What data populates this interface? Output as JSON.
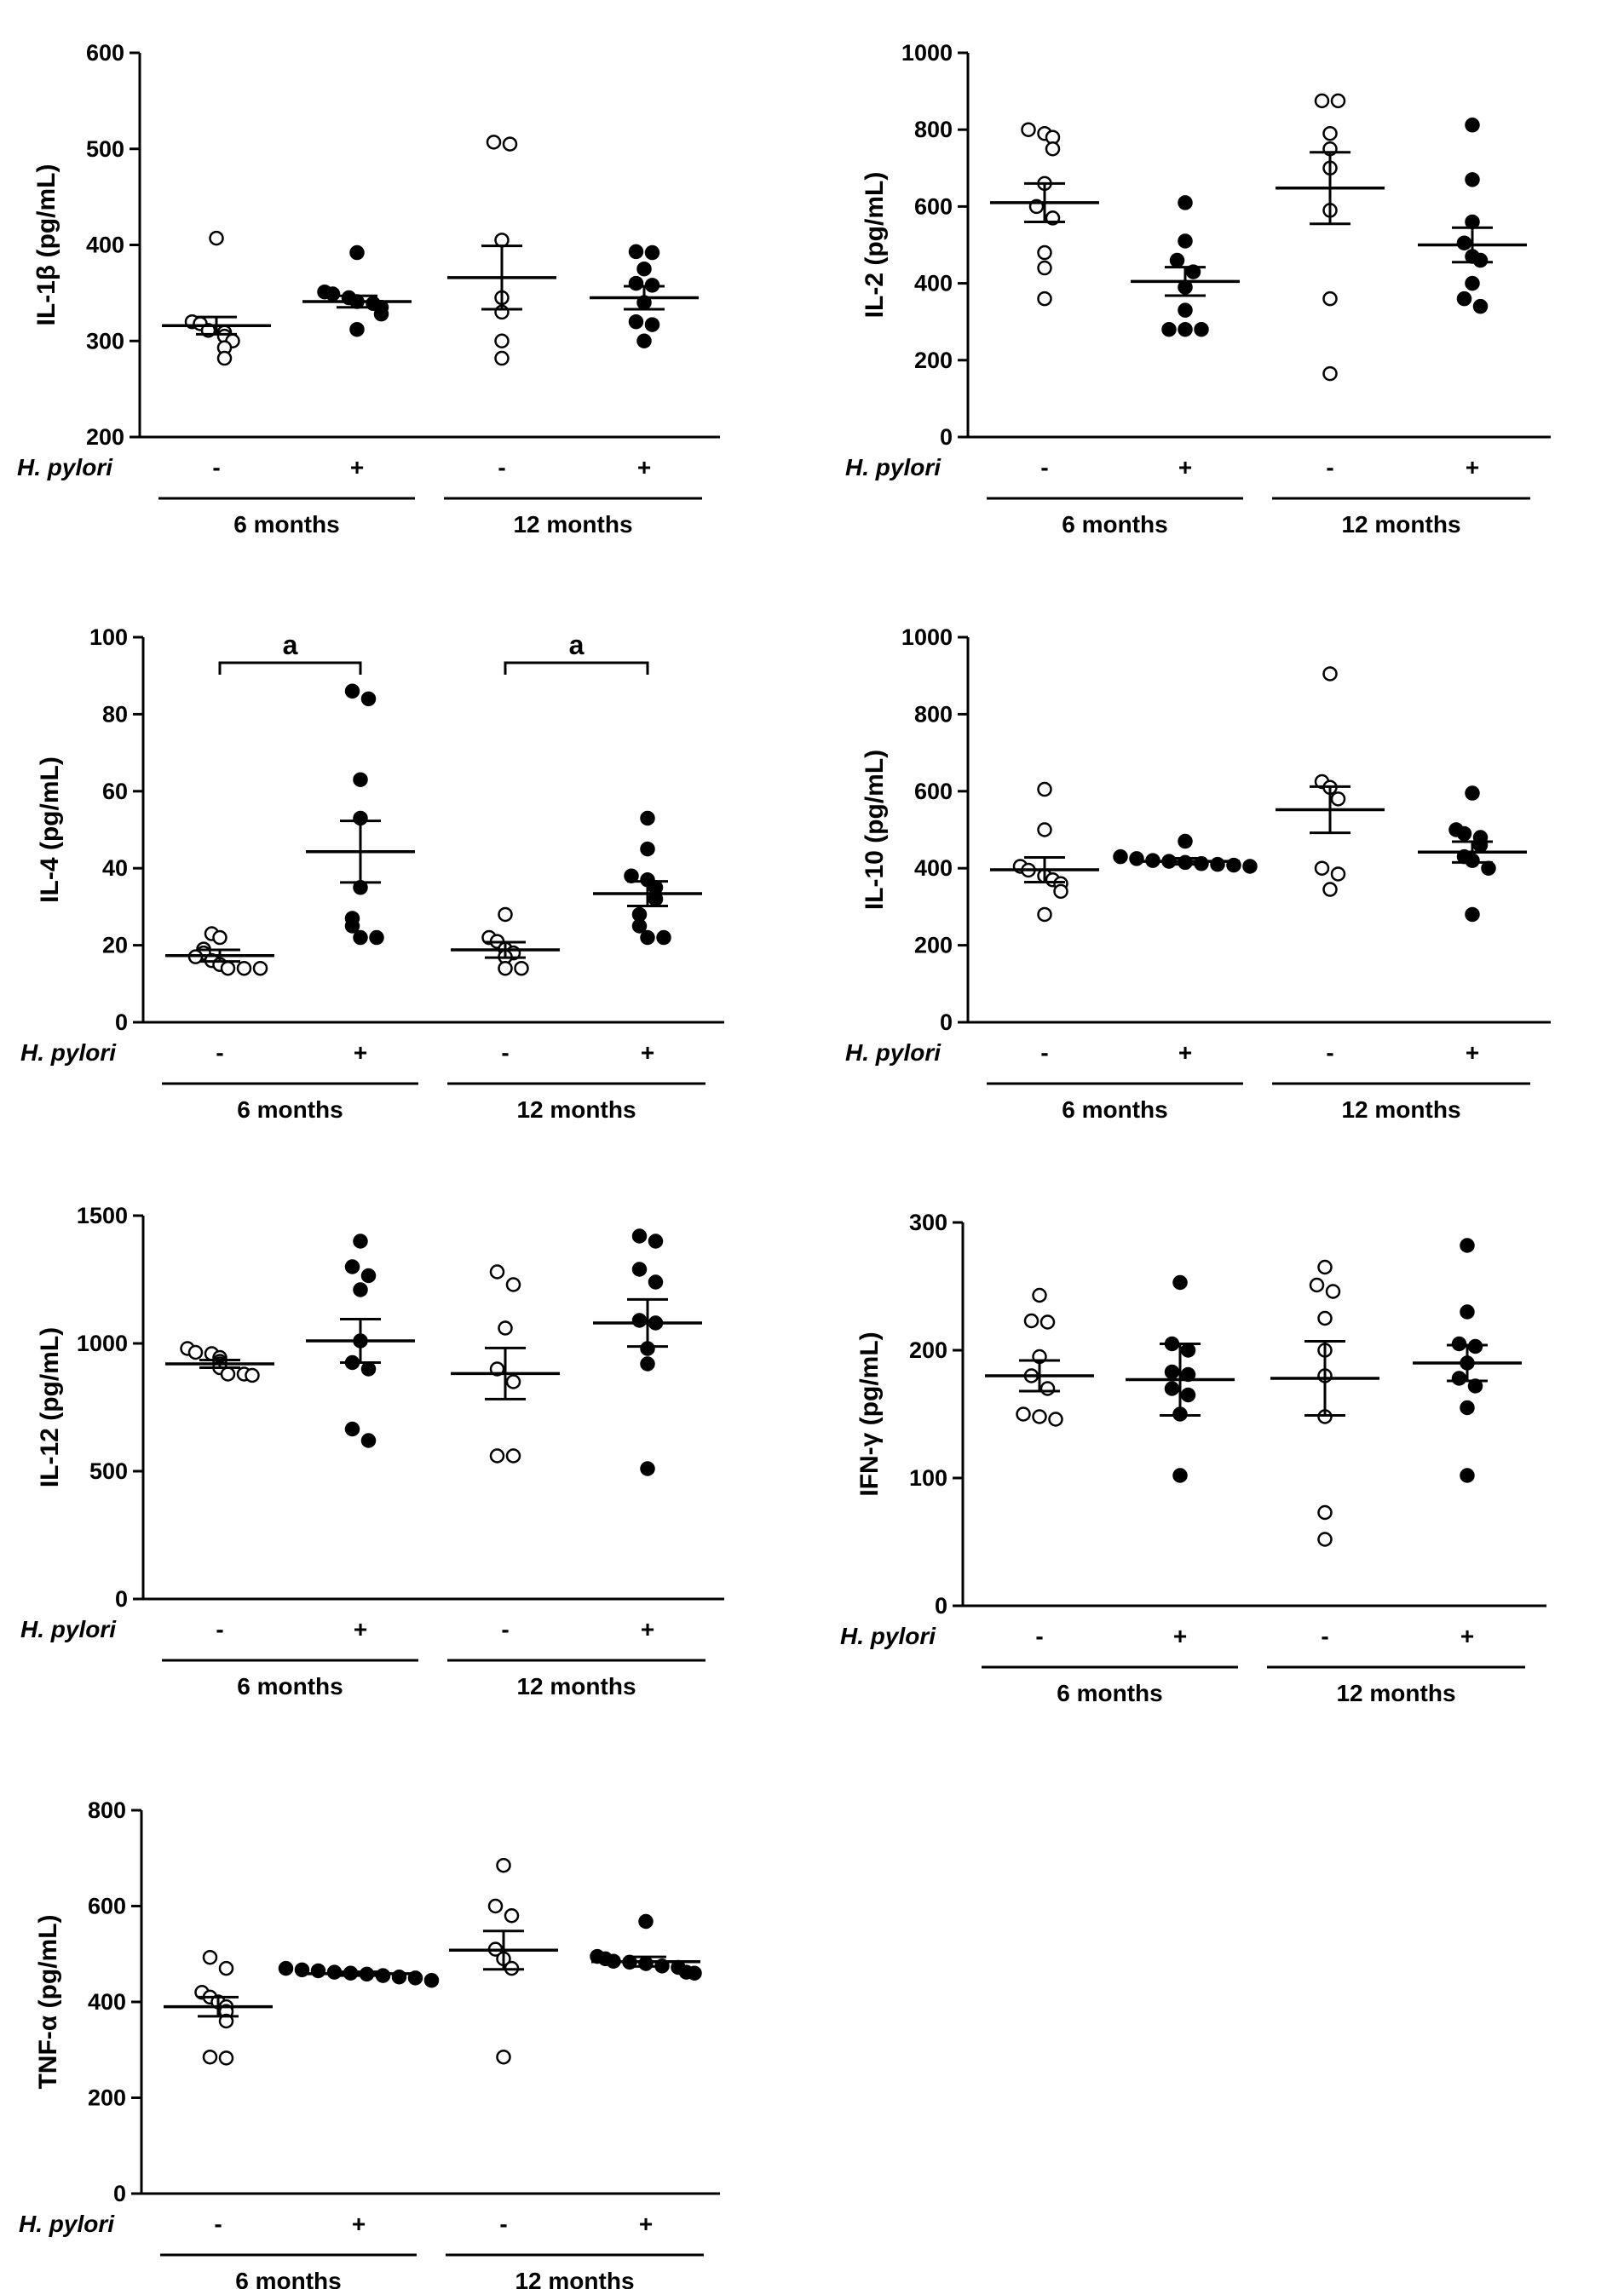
{
  "figure": {
    "infection_label": "H. pylori",
    "group_labels": [
      "6 months",
      "12 months"
    ],
    "column_signs": [
      "-",
      "+",
      "-",
      "+"
    ]
  },
  "chart_data": [
    {
      "type": "scatter",
      "ylabel": "IL-1β (pg/mL)",
      "ylim": [
        200,
        600
      ],
      "yticks": [
        200,
        300,
        400,
        500,
        600
      ],
      "groups": [
        {
          "hp": "-",
          "time": "6 months",
          "mean": 316,
          "sem": 9,
          "values": [
            407,
            320,
            318,
            311,
            309,
            305,
            300,
            293,
            282
          ]
        },
        {
          "hp": "+",
          "time": "6 months",
          "mean": 341,
          "sem": 6,
          "values": [
            392,
            351,
            349,
            345,
            341,
            339,
            335,
            328,
            312
          ]
        },
        {
          "hp": "-",
          "time": "12 months",
          "mean": 366,
          "sem": 33,
          "values": [
            507,
            505,
            405,
            345,
            330,
            300,
            282
          ]
        },
        {
          "hp": "+",
          "time": "12 months",
          "mean": 345,
          "sem": 12,
          "values": [
            393,
            392,
            375,
            360,
            358,
            340,
            320,
            317,
            300
          ]
        }
      ]
    },
    {
      "type": "scatter",
      "ylabel": "IL-2 (pg/mL)",
      "ylim": [
        0,
        1000
      ],
      "yticks": [
        0,
        200,
        400,
        600,
        800,
        1000
      ],
      "groups": [
        {
          "hp": "-",
          "time": "6 months",
          "mean": 610,
          "sem": 50,
          "values": [
            800,
            790,
            780,
            750,
            660,
            600,
            570,
            480,
            440,
            360
          ]
        },
        {
          "hp": "+",
          "time": "6 months",
          "mean": 405,
          "sem": 37,
          "values": [
            610,
            510,
            460,
            430,
            390,
            330,
            280,
            280,
            280
          ]
        },
        {
          "hp": "-",
          "time": "12 months",
          "mean": 648,
          "sem": 93,
          "values": [
            875,
            875,
            790,
            750,
            700,
            590,
            360,
            165
          ]
        },
        {
          "hp": "+",
          "time": "12 months",
          "mean": 500,
          "sem": 45,
          "values": [
            812,
            670,
            560,
            505,
            470,
            460,
            400,
            360,
            340
          ]
        }
      ]
    },
    {
      "type": "scatter",
      "ylabel": "IL-4 (pg/mL)",
      "ylim": [
        0,
        100
      ],
      "yticks": [
        0,
        20,
        40,
        60,
        80,
        100
      ],
      "significance": [
        {
          "label": "a",
          "from": 0,
          "to": 1
        },
        {
          "label": "a",
          "from": 2,
          "to": 3
        }
      ],
      "groups": [
        {
          "hp": "-",
          "time": "6 months",
          "mean": 17.3,
          "sem": 1.5,
          "values": [
            23,
            22,
            19,
            18,
            17,
            16,
            15,
            14,
            14,
            14
          ]
        },
        {
          "hp": "+",
          "time": "6 months",
          "mean": 44.3,
          "sem": 8,
          "values": [
            86,
            84,
            63,
            53,
            35,
            27,
            25,
            22,
            22
          ]
        },
        {
          "hp": "-",
          "time": "12 months",
          "mean": 18.8,
          "sem": 2,
          "values": [
            28,
            22,
            21,
            19,
            18,
            17,
            14,
            14
          ]
        },
        {
          "hp": "+",
          "time": "12 months",
          "mean": 33.4,
          "sem": 3.2,
          "values": [
            53,
            45,
            38,
            37,
            35,
            32,
            28,
            25,
            22,
            22
          ]
        }
      ]
    },
    {
      "type": "scatter",
      "ylabel": "IL-10 (pg/mL)",
      "ylim": [
        0,
        1000
      ],
      "yticks": [
        0,
        200,
        400,
        600,
        800,
        1000
      ],
      "groups": [
        {
          "hp": "-",
          "time": "6 months",
          "mean": 396,
          "sem": 32,
          "values": [
            605,
            500,
            405,
            395,
            380,
            370,
            360,
            340,
            280
          ]
        },
        {
          "hp": "+",
          "time": "6 months",
          "mean": 418,
          "sem": 8,
          "values": [
            470,
            430,
            425,
            420,
            418,
            415,
            412,
            410,
            408,
            405
          ]
        },
        {
          "hp": "-",
          "time": "12 months",
          "mean": 552,
          "sem": 60,
          "values": [
            905,
            625,
            610,
            580,
            400,
            385,
            345
          ]
        },
        {
          "hp": "+",
          "time": "12 months",
          "mean": 442,
          "sem": 27,
          "values": [
            595,
            500,
            490,
            480,
            460,
            430,
            420,
            400,
            280
          ]
        }
      ]
    },
    {
      "type": "scatter",
      "ylabel": "IL-12 (pg/mL)",
      "ylim": [
        0,
        1500
      ],
      "yticks": [
        0,
        500,
        1000,
        1500
      ],
      "groups": [
        {
          "hp": "-",
          "time": "6 months",
          "mean": 920,
          "sem": 15,
          "values": [
            980,
            965,
            960,
            945,
            930,
            920,
            905,
            880,
            880,
            875
          ]
        },
        {
          "hp": "+",
          "time": "6 months",
          "mean": 1010,
          "sem": 85,
          "values": [
            1400,
            1300,
            1265,
            1210,
            1010,
            925,
            900,
            665,
            620
          ]
        },
        {
          "hp": "-",
          "time": "12 months",
          "mean": 882,
          "sem": 100,
          "values": [
            1280,
            1230,
            1060,
            900,
            850,
            560,
            560
          ]
        },
        {
          "hp": "+",
          "time": "12 months",
          "mean": 1080,
          "sem": 92,
          "values": [
            1420,
            1400,
            1290,
            1240,
            1090,
            1080,
            980,
            920,
            510
          ]
        }
      ]
    },
    {
      "type": "scatter",
      "ylabel": "IFN-γ (pg/mL)",
      "ylim": [
        0,
        300
      ],
      "yticks": [
        0,
        100,
        200,
        300
      ],
      "groups": [
        {
          "hp": "-",
          "time": "6 months",
          "mean": 180,
          "sem": 12,
          "values": [
            243,
            223,
            222,
            195,
            180,
            170,
            150,
            148,
            146
          ]
        },
        {
          "hp": "+",
          "time": "6 months",
          "mean": 177,
          "sem": 28,
          "values": [
            253,
            205,
            200,
            183,
            181,
            170,
            165,
            150,
            102
          ]
        },
        {
          "hp": "-",
          "time": "12 months",
          "mean": 178,
          "sem": 29,
          "values": [
            265,
            251,
            246,
            225,
            200,
            180,
            148,
            73,
            52
          ]
        },
        {
          "hp": "+",
          "time": "12 months",
          "mean": 190,
          "sem": 14,
          "values": [
            282,
            230,
            205,
            203,
            190,
            178,
            172,
            155,
            102
          ]
        }
      ]
    },
    {
      "type": "scatter",
      "ylabel": "TNF-α (pg/mL)",
      "ylim": [
        0,
        800
      ],
      "yticks": [
        0,
        200,
        400,
        600,
        800
      ],
      "groups": [
        {
          "hp": "-",
          "time": "6 months",
          "mean": 390,
          "sem": 20,
          "values": [
            493,
            470,
            420,
            410,
            400,
            390,
            380,
            360,
            285,
            283
          ]
        },
        {
          "hp": "+",
          "time": "6 months",
          "mean": 459,
          "sem": 4,
          "values": [
            470,
            467,
            465,
            462,
            460,
            458,
            455,
            452,
            450,
            445
          ]
        },
        {
          "hp": "-",
          "time": "12 months",
          "mean": 508,
          "sem": 40,
          "values": [
            685,
            600,
            580,
            510,
            490,
            470,
            285
          ]
        },
        {
          "hp": "+",
          "time": "12 months",
          "mean": 484,
          "sem": 10,
          "values": [
            568,
            495,
            490,
            485,
            483,
            480,
            475,
            472,
            462,
            460
          ]
        }
      ]
    }
  ]
}
